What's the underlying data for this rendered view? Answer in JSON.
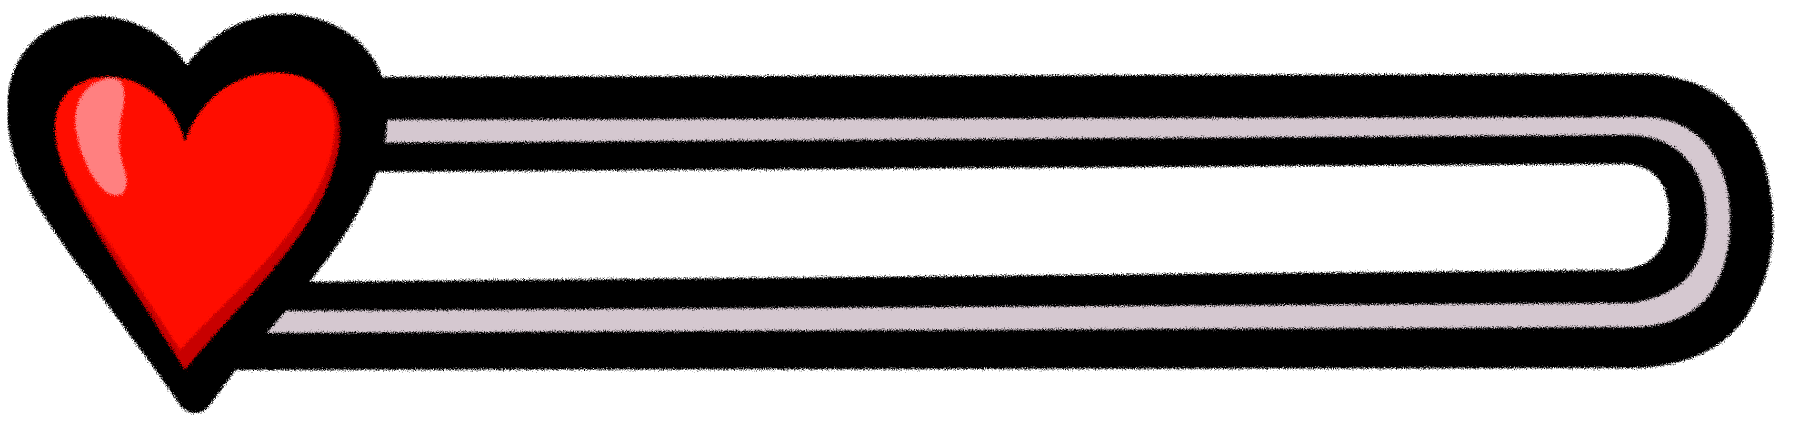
{
  "health_bar": {
    "heart_icon": "heart-icon",
    "fill_fraction": 0.0,
    "colors": {
      "outline": "#000000",
      "heart_fill": "#ff0a00",
      "heart_shadow": "#c80000",
      "heart_highlight": "#ff8080",
      "track_rim": "#d5c8d0",
      "track_inner": "#ffffff",
      "fill": "#ff0a00",
      "background": "#ffffff"
    }
  }
}
